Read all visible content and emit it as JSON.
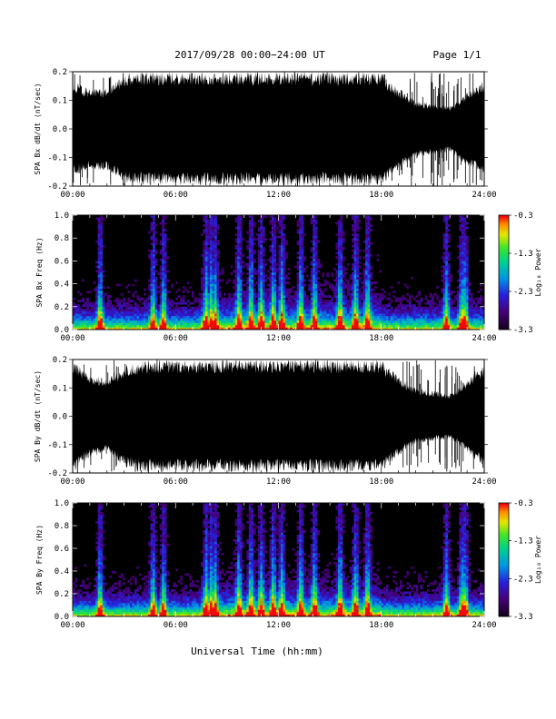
{
  "header": {
    "title": "2017/09/28  00:00−24:00 UT",
    "page": "Page 1/1"
  },
  "xlabel": "Universal Time (hh:mm)",
  "chart_data": [
    {
      "type": "line",
      "ylabel": "SPA Bx dB/dt (nT/sec)",
      "ylim": [
        -0.2,
        0.2
      ],
      "xlim": [
        "00:00",
        "24:00"
      ],
      "xticks": [
        "00:00",
        "06:00",
        "12:00",
        "18:00",
        "24:00"
      ],
      "yticks": [
        "-0.2",
        "-0.1",
        "0.0",
        "0.1",
        "0.2"
      ],
      "series": [
        {
          "x_hours": [
            0,
            1,
            2,
            3,
            4,
            5,
            6,
            7,
            8,
            9,
            10,
            11,
            12,
            13,
            14,
            15,
            16,
            17,
            18,
            19,
            20,
            21,
            22,
            23,
            24
          ],
          "envelope_max": [
            0.17,
            0.14,
            0.15,
            0.19,
            0.2,
            0.2,
            0.2,
            0.2,
            0.2,
            0.2,
            0.2,
            0.2,
            0.2,
            0.2,
            0.2,
            0.2,
            0.2,
            0.2,
            0.2,
            0.14,
            0.1,
            0.09,
            0.08,
            0.13,
            0.17
          ],
          "envelope_min": [
            -0.17,
            -0.14,
            -0.15,
            -0.19,
            -0.2,
            -0.2,
            -0.2,
            -0.2,
            -0.2,
            -0.2,
            -0.2,
            -0.2,
            -0.2,
            -0.2,
            -0.2,
            -0.2,
            -0.2,
            -0.2,
            -0.2,
            -0.14,
            -0.1,
            -0.09,
            -0.08,
            -0.13,
            -0.17
          ]
        }
      ]
    },
    {
      "type": "heatmap",
      "ylabel": "SPA Bx Freq (Hz)",
      "ylim": [
        0.0,
        1.0
      ],
      "xlim": [
        "00:00",
        "24:00"
      ],
      "xticks": [
        "00:00",
        "06:00",
        "12:00",
        "18:00",
        "24:00"
      ],
      "yticks": [
        "0.0",
        "0.2",
        "0.4",
        "0.6",
        "0.8",
        "1.0"
      ],
      "colorbar": {
        "label": "Log₁₀ Power",
        "min": -3.3,
        "max": -0.3,
        "ticks": [
          "-0.3",
          "-1.3",
          "-2.3",
          "-3.3"
        ]
      },
      "burst_hours": [
        1.6,
        4.7,
        5.3,
        7.8,
        8.1,
        8.3,
        9.7,
        10.4,
        11.0,
        11.7,
        12.2,
        13.3,
        14.1,
        15.6,
        16.5,
        17.2,
        21.8,
        22.7,
        22.9
      ]
    },
    {
      "type": "line",
      "ylabel": "SPA By dB/dt (nT/sec)",
      "ylim": [
        -0.2,
        0.2
      ],
      "xlim": [
        "00:00",
        "24:00"
      ],
      "xticks": [
        "00:00",
        "06:00",
        "12:00",
        "18:00",
        "24:00"
      ],
      "yticks": [
        "-0.2",
        "-0.1",
        "0.0",
        "0.1",
        "0.2"
      ],
      "series": [
        {
          "x_hours": [
            0,
            1,
            2,
            3,
            4,
            5,
            6,
            7,
            8,
            9,
            10,
            11,
            12,
            13,
            14,
            15,
            16,
            17,
            18,
            19,
            20,
            21,
            22,
            23,
            24
          ],
          "envelope_max": [
            0.2,
            0.15,
            0.13,
            0.18,
            0.2,
            0.2,
            0.2,
            0.2,
            0.2,
            0.2,
            0.2,
            0.2,
            0.2,
            0.2,
            0.2,
            0.2,
            0.2,
            0.2,
            0.2,
            0.14,
            0.1,
            0.09,
            0.08,
            0.13,
            0.18
          ],
          "envelope_min": [
            -0.2,
            -0.15,
            -0.13,
            -0.18,
            -0.2,
            -0.2,
            -0.2,
            -0.2,
            -0.2,
            -0.2,
            -0.2,
            -0.2,
            -0.2,
            -0.2,
            -0.2,
            -0.2,
            -0.2,
            -0.2,
            -0.2,
            -0.14,
            -0.1,
            -0.09,
            -0.08,
            -0.13,
            -0.18
          ]
        }
      ]
    },
    {
      "type": "heatmap",
      "ylabel": "SPA By Freq (Hz)",
      "ylim": [
        0.0,
        1.0
      ],
      "xlim": [
        "00:00",
        "24:00"
      ],
      "xticks": [
        "00:00",
        "06:00",
        "12:00",
        "18:00",
        "24:00"
      ],
      "yticks": [
        "0.0",
        "0.2",
        "0.4",
        "0.6",
        "0.8",
        "1.0"
      ],
      "colorbar": {
        "label": "Log₁₀ Power",
        "min": -3.3,
        "max": -0.3,
        "ticks": [
          "-0.3",
          "-1.3",
          "-2.3",
          "-3.3"
        ]
      },
      "burst_hours": [
        1.6,
        4.7,
        5.3,
        7.8,
        8.1,
        8.3,
        9.7,
        10.4,
        11.0,
        11.7,
        12.2,
        13.3,
        14.1,
        15.6,
        16.5,
        17.2,
        21.8,
        22.7,
        22.9
      ]
    }
  ]
}
